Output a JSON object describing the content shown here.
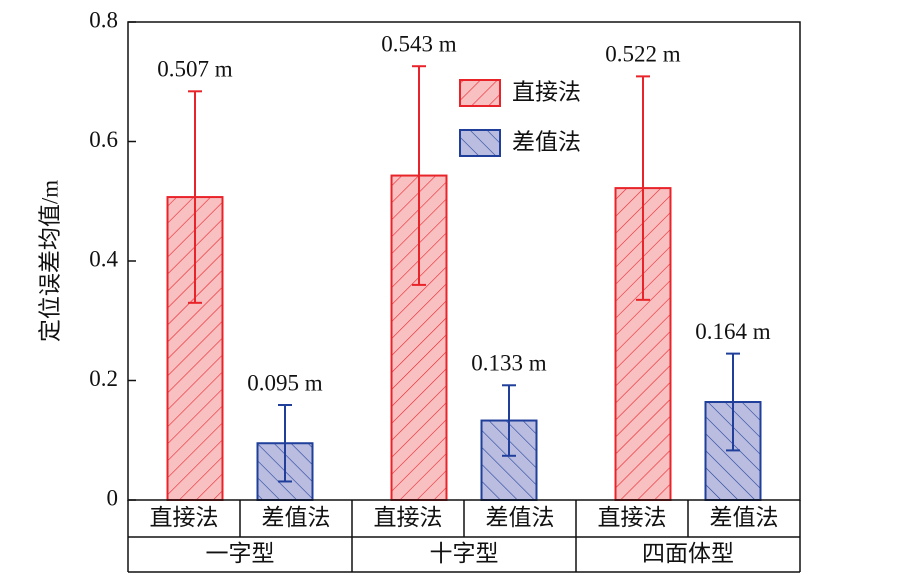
{
  "chart_data": {
    "type": "bar",
    "ylabel": "定位误差均值/m",
    "categories": [
      "一字型",
      "十字型",
      "四面体型"
    ],
    "series": [
      {
        "name": "直接法",
        "color": "#e8242a",
        "fill": "#f9c0c2",
        "hatch": "forward",
        "values": [
          0.507,
          0.543,
          0.522
        ],
        "errors": [
          0.177,
          0.183,
          0.187
        ],
        "value_labels": [
          "0.507 m",
          "0.543 m",
          "0.522 m"
        ]
      },
      {
        "name": "差值法",
        "color": "#1f3f9a",
        "fill": "#babde0",
        "hatch": "backward",
        "values": [
          0.095,
          0.133,
          0.164
        ],
        "errors": [
          0.064,
          0.059,
          0.081
        ],
        "value_labels": [
          "0.095 m",
          "0.133 m",
          "0.164 m"
        ]
      }
    ],
    "ylim": [
      0,
      0.8
    ],
    "yticks": [
      0,
      0.2,
      0.4,
      0.6,
      0.8
    ],
    "grid": false,
    "legend": "upper center"
  }
}
